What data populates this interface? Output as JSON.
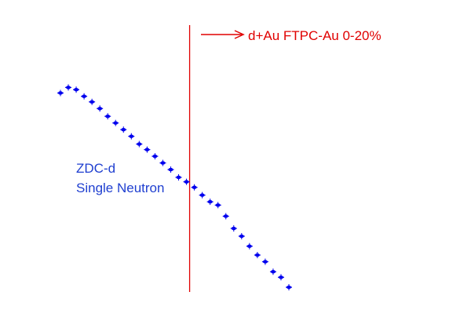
{
  "chart_data": {
    "type": "scatter",
    "annotations": {
      "cut_label": "d+Au FTPC-Au 0-20%",
      "series_label_line1": "ZDC-d",
      "series_label_line2": "Single Neutron"
    },
    "colors": {
      "points": "#0000ee",
      "cut_line": "#e00000",
      "cut_text": "#e00000",
      "series_text": "#1f3fd0"
    },
    "series": [
      {
        "x": [
          1,
          2,
          3,
          4,
          5,
          6,
          7,
          8,
          9,
          10,
          11,
          12,
          13,
          14,
          15,
          16,
          17,
          18,
          19,
          20,
          21,
          22,
          23,
          24,
          25,
          26,
          27,
          28,
          29,
          30
        ],
        "y": [
          -6,
          -1,
          -3,
          -9,
          -14,
          -20,
          -27,
          -33,
          -39,
          -45,
          -52,
          -57,
          -63,
          -69,
          -75,
          -82,
          -86,
          -91,
          -98,
          -104,
          -107,
          -117,
          -128,
          -135,
          -144,
          -152,
          -158,
          -167,
          -172,
          -181
        ]
      }
    ],
    "cut_x": 17.4
  }
}
